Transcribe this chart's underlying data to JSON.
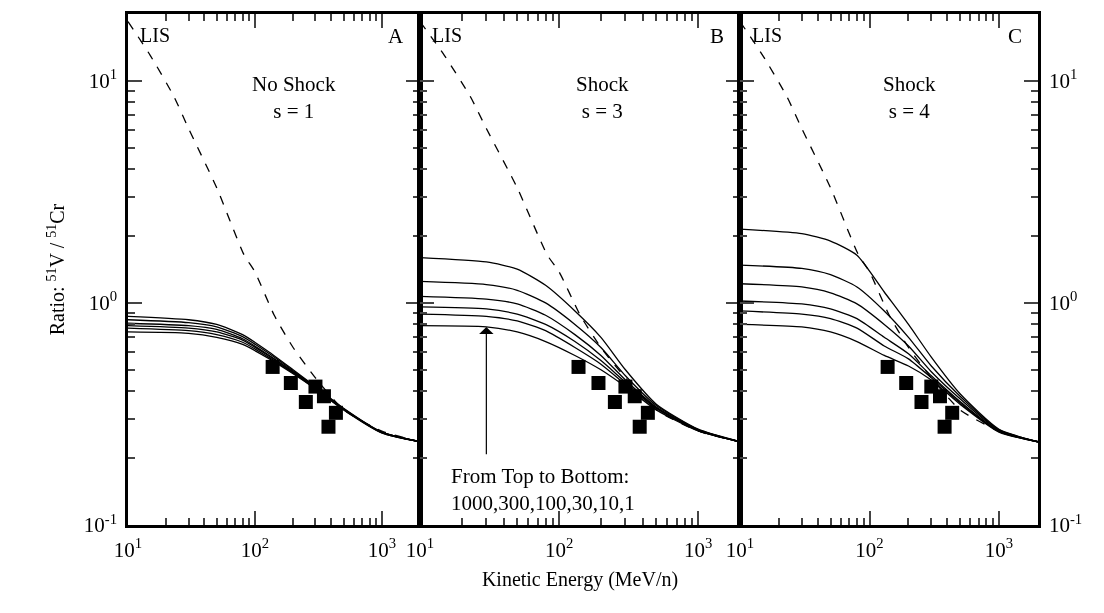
{
  "chart_data": [
    {
      "type": "line",
      "log": "xy",
      "xlim": [
        10,
        2000
      ],
      "ylim": [
        0.1,
        20
      ],
      "xticks": [
        {
          "value": 10,
          "label": "10$^{1}$"
        },
        {
          "value": 20,
          "label": null
        },
        {
          "value": 30,
          "label": null
        },
        {
          "value": 40,
          "label": null
        },
        {
          "value": 50,
          "label": null
        },
        {
          "value": 60,
          "label": null
        },
        {
          "value": 70,
          "label": null
        },
        {
          "value": 80,
          "label": null
        },
        {
          "value": 90,
          "label": null
        },
        {
          "value": 100,
          "label": "10$^{2}$"
        },
        {
          "value": 200,
          "label": null
        },
        {
          "value": 300,
          "label": null
        },
        {
          "value": 400,
          "label": null
        },
        {
          "value": 500,
          "label": null
        },
        {
          "value": 600,
          "label": null
        },
        {
          "value": 700,
          "label": null
        },
        {
          "value": 800,
          "label": null
        },
        {
          "value": 900,
          "label": null
        },
        {
          "value": 1000,
          "label": "10$^{3}$"
        }
      ],
      "yticks": [
        {
          "value": 0.1,
          "label": "10$^{-1}$"
        },
        {
          "value": 0.2,
          "label": null
        },
        {
          "value": 0.3,
          "label": null
        },
        {
          "value": 0.4,
          "label": null
        },
        {
          "value": 0.5,
          "label": null
        },
        {
          "value": 0.6,
          "label": null
        },
        {
          "value": 0.7,
          "label": null
        },
        {
          "value": 0.8,
          "label": null
        },
        {
          "value": 0.9,
          "label": null
        },
        {
          "value": 1,
          "label": "10$^{0}$"
        },
        {
          "value": 2,
          "label": null
        },
        {
          "value": 3,
          "label": null
        },
        {
          "value": 4,
          "label": null
        },
        {
          "value": 5,
          "label": null
        },
        {
          "value": 6,
          "label": null
        },
        {
          "value": 7,
          "label": null
        },
        {
          "value": 8,
          "label": null
        },
        {
          "value": 9,
          "label": null
        },
        {
          "value": 10,
          "label": "10$^{1}$"
        }
      ],
      "ylabel": "Ratio: $^{51}$V / $^{51}$Cr",
      "annotations": [
        "A",
        "No Shock\ns = 1"
      ],
      "x": [
        10,
        30,
        50,
        80,
        130,
        200,
        300,
        500,
        1000,
        2000
      ],
      "series": [
        {
          "color": "#000000",
          "line_style": "solid",
          "values": [
            0.87,
            0.84,
            0.8,
            0.72,
            0.6,
            0.5,
            0.42,
            0.335,
            0.262,
            0.237
          ]
        },
        {
          "color": "#000000",
          "line_style": "solid",
          "values": [
            0.84,
            0.815,
            0.78,
            0.705,
            0.59,
            0.495,
            0.417,
            0.334,
            0.262,
            0.237
          ]
        },
        {
          "color": "#000000",
          "line_style": "solid",
          "values": [
            0.81,
            0.79,
            0.76,
            0.69,
            0.58,
            0.49,
            0.415,
            0.333,
            0.261,
            0.237
          ]
        },
        {
          "color": "#000000",
          "line_style": "solid",
          "values": [
            0.79,
            0.77,
            0.74,
            0.68,
            0.575,
            0.488,
            0.413,
            0.332,
            0.261,
            0.237
          ]
        },
        {
          "color": "#000000",
          "line_style": "solid",
          "values": [
            0.77,
            0.75,
            0.72,
            0.665,
            0.567,
            0.484,
            0.411,
            0.331,
            0.26,
            0.237
          ]
        },
        {
          "color": "#000000",
          "line_style": "solid",
          "values": [
            0.74,
            0.73,
            0.7,
            0.65,
            0.56,
            0.48,
            0.41,
            0.33,
            0.26,
            0.237
          ]
        },
        {
          "name": "LIS",
          "color": "#000000",
          "line_style": "dashed",
          "x": [
            10,
            15,
            23,
            30,
            50,
            82,
            100,
            142,
            200,
            300,
            500,
            1000,
            2000
          ],
          "values": [
            18.5,
            13,
            8.5,
            6.1,
            3.3,
            1.65,
            1.38,
            0.88,
            0.63,
            0.46,
            0.33,
            0.265,
            0.237
          ]
        },
        {
          "type": "scatter",
          "marker": "square",
          "color": "#000000",
          "x": [
            138,
            192,
            252,
            300,
            350,
            380,
            435
          ],
          "values": [
            0.515,
            0.436,
            0.358,
            0.42,
            0.38,
            0.277,
            0.32
          ]
        }
      ]
    },
    {
      "type": "line",
      "log": "xy",
      "xlim": [
        10,
        2000
      ],
      "ylim": [
        0.1,
        20
      ],
      "tick_labels": "x",
      "xticks": [
        {
          "value": 10,
          "label": "10$^{1}$"
        },
        {
          "value": 20,
          "label": null
        },
        {
          "value": 30,
          "label": null
        },
        {
          "value": 40,
          "label": null
        },
        {
          "value": 50,
          "label": null
        },
        {
          "value": 60,
          "label": null
        },
        {
          "value": 70,
          "label": null
        },
        {
          "value": 80,
          "label": null
        },
        {
          "value": 90,
          "label": null
        },
        {
          "value": 100,
          "label": "10$^{2}$"
        },
        {
          "value": 200,
          "label": null
        },
        {
          "value": 300,
          "label": null
        },
        {
          "value": 400,
          "label": null
        },
        {
          "value": 500,
          "label": null
        },
        {
          "value": 600,
          "label": null
        },
        {
          "value": 700,
          "label": null
        },
        {
          "value": 800,
          "label": null
        },
        {
          "value": 900,
          "label": null
        },
        {
          "value": 1000,
          "label": "10$^{3}$"
        }
      ],
      "yticks": [
        {
          "value": 0.1,
          "label": "10$^{-1}$"
        },
        {
          "value": 0.2,
          "label": null
        },
        {
          "value": 0.3,
          "label": null
        },
        {
          "value": 0.4,
          "label": null
        },
        {
          "value": 0.5,
          "label": null
        },
        {
          "value": 0.6,
          "label": null
        },
        {
          "value": 0.7,
          "label": null
        },
        {
          "value": 0.8,
          "label": null
        },
        {
          "value": 0.9,
          "label": null
        },
        {
          "value": 1,
          "label": "10$^{0}$"
        },
        {
          "value": 2,
          "label": null
        },
        {
          "value": 3,
          "label": null
        },
        {
          "value": 4,
          "label": null
        },
        {
          "value": 5,
          "label": null
        },
        {
          "value": 6,
          "label": null
        },
        {
          "value": 7,
          "label": null
        },
        {
          "value": 8,
          "label": null
        },
        {
          "value": 9,
          "label": null
        },
        {
          "value": 10,
          "label": "10$^{1}$"
        }
      ],
      "xlabel": "Kinetic Energy (MeV/n)",
      "annotations": [
        "B",
        "Shock\ns = 3",
        {
          "text": "From Top to Bottom:\n1000,300,100,30,10,1",
          "x": 30,
          "y": 0.78
        }
      ],
      "x": [
        10,
        30,
        50,
        80,
        130,
        200,
        300,
        500,
        1000,
        2000
      ],
      "series": [
        {
          "color": "#000000",
          "line_style": "solid",
          "values": [
            1.6,
            1.53,
            1.42,
            1.2,
            0.92,
            0.7,
            0.5,
            0.35,
            0.27,
            0.237
          ]
        },
        {
          "color": "#000000",
          "line_style": "solid",
          "values": [
            1.25,
            1.21,
            1.14,
            1.0,
            0.8,
            0.63,
            0.47,
            0.345,
            0.269,
            0.237
          ]
        },
        {
          "color": "#000000",
          "line_style": "solid",
          "values": [
            1.07,
            1.04,
            0.99,
            0.88,
            0.72,
            0.58,
            0.45,
            0.34,
            0.268,
            0.237
          ]
        },
        {
          "color": "#000000",
          "line_style": "solid",
          "values": [
            0.96,
            0.94,
            0.89,
            0.8,
            0.67,
            0.55,
            0.44,
            0.337,
            0.267,
            0.237
          ]
        },
        {
          "color": "#000000",
          "line_style": "solid",
          "values": [
            0.89,
            0.87,
            0.83,
            0.75,
            0.63,
            0.53,
            0.43,
            0.335,
            0.266,
            0.237
          ]
        },
        {
          "color": "#000000",
          "line_style": "solid",
          "values": [
            0.79,
            0.78,
            0.74,
            0.67,
            0.58,
            0.5,
            0.42,
            0.33,
            0.265,
            0.237
          ]
        },
        {
          "name": "LIS",
          "color": "#000000",
          "line_style": "dashed",
          "x": [
            10,
            15,
            23,
            30,
            50,
            82,
            100,
            142,
            200,
            300,
            500,
            1000,
            2000
          ],
          "values": [
            18.5,
            13,
            8.5,
            6.1,
            3.3,
            1.65,
            1.38,
            0.88,
            0.63,
            0.46,
            0.33,
            0.265,
            0.237
          ]
        },
        {
          "type": "scatter",
          "marker": "square",
          "color": "#000000",
          "x": [
            138,
            192,
            252,
            300,
            350,
            380,
            435
          ],
          "values": [
            0.515,
            0.436,
            0.358,
            0.42,
            0.38,
            0.277,
            0.32
          ]
        }
      ]
    },
    {
      "type": "line",
      "log": "xy",
      "xlim": [
        10,
        2000
      ],
      "ylim": [
        0.1,
        20
      ],
      "xticks": [
        {
          "value": 10,
          "label": "10$^{1}$"
        },
        {
          "value": 20,
          "label": null
        },
        {
          "value": 30,
          "label": null
        },
        {
          "value": 40,
          "label": null
        },
        {
          "value": 50,
          "label": null
        },
        {
          "value": 60,
          "label": null
        },
        {
          "value": 70,
          "label": null
        },
        {
          "value": 80,
          "label": null
        },
        {
          "value": 90,
          "label": null
        },
        {
          "value": 100,
          "label": "10$^{2}$"
        },
        {
          "value": 200,
          "label": null
        },
        {
          "value": 300,
          "label": null
        },
        {
          "value": 400,
          "label": null
        },
        {
          "value": 500,
          "label": null
        },
        {
          "value": 600,
          "label": null
        },
        {
          "value": 700,
          "label": null
        },
        {
          "value": 800,
          "label": null
        },
        {
          "value": 900,
          "label": null
        },
        {
          "value": 1000,
          "label": "10$^{3}$"
        }
      ],
      "yticks": [
        {
          "value": 0.1,
          "label": "10$^{-1}$"
        },
        {
          "value": 0.2,
          "label": null
        },
        {
          "value": 0.3,
          "label": null
        },
        {
          "value": 0.4,
          "label": null
        },
        {
          "value": 0.5,
          "label": null
        },
        {
          "value": 0.6,
          "label": null
        },
        {
          "value": 0.7,
          "label": null
        },
        {
          "value": 0.8,
          "label": null
        },
        {
          "value": 0.9,
          "label": null
        },
        {
          "value": 1,
          "label": "10$^{0}$"
        },
        {
          "value": 2,
          "label": null
        },
        {
          "value": 3,
          "label": null
        },
        {
          "value": 4,
          "label": null
        },
        {
          "value": 5,
          "label": null
        },
        {
          "value": 6,
          "label": null
        },
        {
          "value": 7,
          "label": null
        },
        {
          "value": 8,
          "label": null
        },
        {
          "value": 9,
          "label": null
        },
        {
          "value": 10,
          "label": "10$^{1}$"
        }
      ],
      "annotations": [
        "C",
        "Shock\ns = 4"
      ],
      "x": [
        10,
        30,
        50,
        80,
        130,
        200,
        300,
        500,
        1000,
        2000
      ],
      "series": [
        {
          "color": "#000000",
          "line_style": "solid",
          "values": [
            2.15,
            2.05,
            1.9,
            1.64,
            1.12,
            0.8,
            0.57,
            0.39,
            0.27,
            0.237
          ]
        },
        {
          "color": "#000000",
          "line_style": "solid",
          "values": [
            1.48,
            1.43,
            1.34,
            1.18,
            0.92,
            0.7,
            0.52,
            0.38,
            0.268,
            0.237
          ]
        },
        {
          "color": "#000000",
          "line_style": "solid",
          "values": [
            1.22,
            1.18,
            1.11,
            0.99,
            0.8,
            0.64,
            0.49,
            0.37,
            0.266,
            0.237
          ]
        },
        {
          "color": "#000000",
          "line_style": "solid",
          "values": [
            1.02,
            0.99,
            0.94,
            0.85,
            0.7,
            0.59,
            0.47,
            0.36,
            0.264,
            0.237
          ]
        },
        {
          "color": "#000000",
          "line_style": "solid",
          "values": [
            0.92,
            0.89,
            0.85,
            0.77,
            0.64,
            0.56,
            0.46,
            0.355,
            0.263,
            0.237
          ]
        },
        {
          "color": "#000000",
          "line_style": "solid",
          "values": [
            0.8,
            0.78,
            0.74,
            0.67,
            0.58,
            0.52,
            0.45,
            0.35,
            0.262,
            0.237
          ]
        },
        {
          "name": "LIS",
          "color": "#000000",
          "line_style": "dashed",
          "x": [
            10,
            15,
            23,
            30,
            50,
            82,
            100,
            142,
            200,
            300,
            500,
            1000,
            2000
          ],
          "values": [
            18.5,
            13,
            8.5,
            6.1,
            3.3,
            1.65,
            1.38,
            0.88,
            0.63,
            0.46,
            0.33,
            0.265,
            0.237
          ]
        },
        {
          "type": "scatter",
          "marker": "square",
          "color": "#000000",
          "x": [
            138,
            192,
            252,
            300,
            350,
            380,
            435
          ],
          "values": [
            0.515,
            0.436,
            0.358,
            0.42,
            0.38,
            0.277,
            0.32
          ]
        }
      ]
    }
  ]
}
